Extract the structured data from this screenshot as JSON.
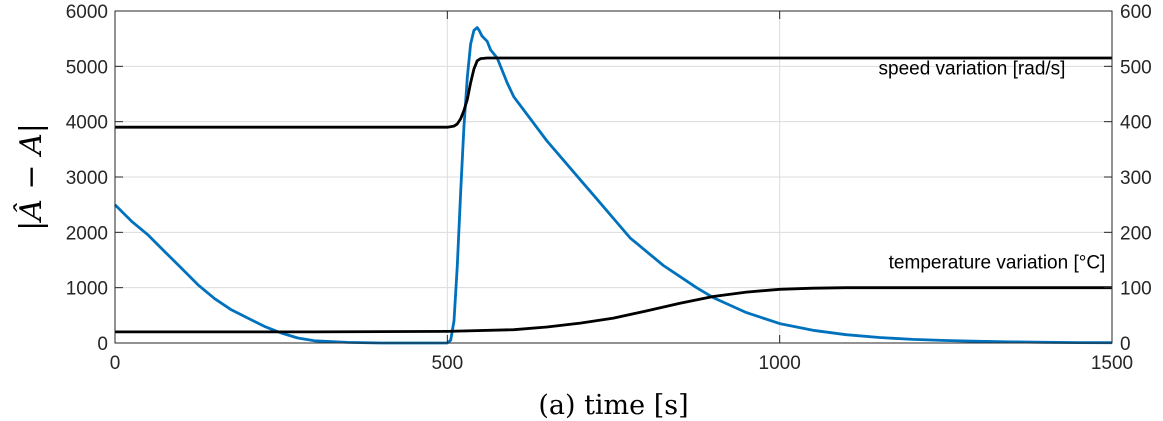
{
  "chart_data": {
    "type": "line",
    "xlabel": "(a) time [s]",
    "ylabel": "|Â − A|",
    "xlim": [
      0,
      1500
    ],
    "xticks": [
      0,
      500,
      1000,
      1500
    ],
    "ylim": [
      0,
      6000
    ],
    "yticks": [
      0,
      1000,
      2000,
      3000,
      4000,
      5000,
      6000
    ],
    "y2lim": [
      0,
      600
    ],
    "y2ticks": [
      0,
      100,
      200,
      300,
      400,
      500,
      600
    ],
    "grid": true,
    "series": [
      {
        "name": "",
        "axis": "left",
        "color": "#0072bd",
        "x": [
          0,
          25,
          50,
          75,
          100,
          125,
          150,
          175,
          200,
          225,
          250,
          275,
          300,
          350,
          400,
          450,
          500,
          505,
          510,
          515,
          520,
          525,
          530,
          535,
          540,
          545,
          548,
          552,
          556,
          560,
          565,
          575,
          590,
          600,
          625,
          650,
          675,
          700,
          725,
          750,
          775,
          800,
          825,
          850,
          875,
          900,
          950,
          1000,
          1050,
          1100,
          1150,
          1200,
          1250,
          1300,
          1350,
          1400,
          1450,
          1500
        ],
        "y": [
          2500,
          2200,
          1950,
          1650,
          1350,
          1050,
          800,
          600,
          450,
          300,
          180,
          90,
          40,
          10,
          0,
          0,
          0,
          50,
          400,
          1400,
          2700,
          3900,
          4800,
          5400,
          5650,
          5700,
          5650,
          5550,
          5500,
          5450,
          5300,
          5150,
          4700,
          4450,
          4050,
          3650,
          3300,
          2950,
          2600,
          2250,
          1900,
          1650,
          1400,
          1200,
          1000,
          820,
          550,
          350,
          230,
          150,
          100,
          65,
          45,
          30,
          20,
          12,
          8,
          5
        ]
      },
      {
        "name": "speed variation [rad/s]",
        "axis": "right",
        "color": "#000000",
        "x": [
          0,
          500,
          510,
          515,
          520,
          525,
          530,
          535,
          540,
          545,
          550,
          560,
          1500
        ],
        "y": [
          390,
          390,
          392,
          396,
          405,
          420,
          440,
          470,
          495,
          510,
          514,
          515,
          515
        ]
      },
      {
        "name": "temperature variation [°C]",
        "axis": "right",
        "color": "#000000",
        "x": [
          0,
          300,
          500,
          600,
          650,
          700,
          750,
          800,
          850,
          900,
          950,
          1000,
          1050,
          1100,
          1200,
          1500
        ],
        "y": [
          20,
          20,
          21,
          24,
          29,
          36,
          45,
          58,
          72,
          84,
          92,
          97,
          99,
          100,
          100,
          100
        ]
      }
    ],
    "annotations": [
      {
        "text": "speed variation [rad/s]",
        "x": 1430,
        "y2": 485
      },
      {
        "text": "temperature variation [°C]",
        "x": 1490,
        "y2": 135
      }
    ]
  }
}
